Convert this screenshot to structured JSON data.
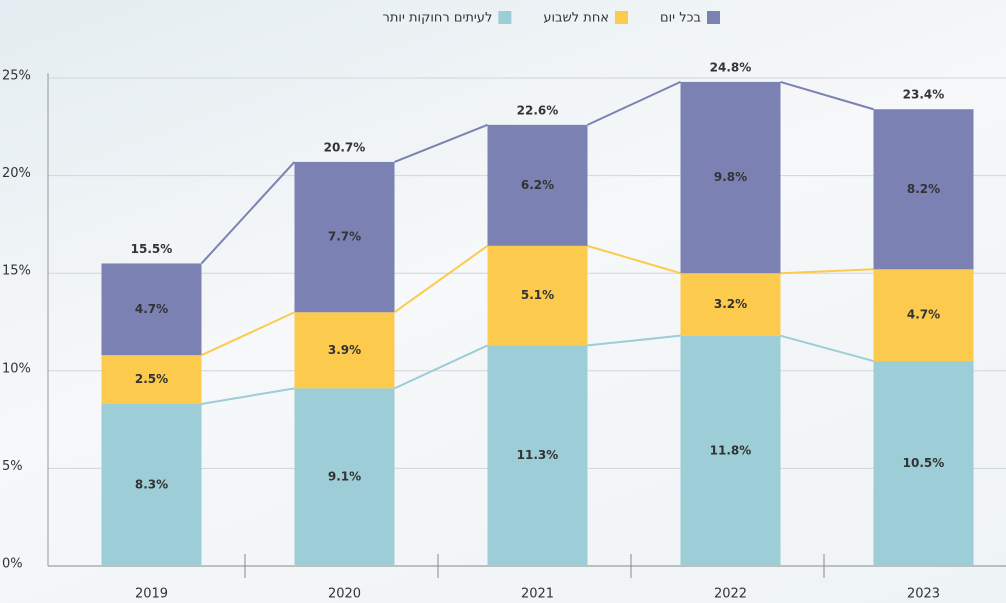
{
  "chart_data": {
    "type": "stacked_bar",
    "categories": [
      "2019",
      "2020",
      "2021",
      "2022",
      "2023"
    ],
    "series": [
      {
        "name": "לעיתים רחוקות יותר",
        "color": "#9dcdd6",
        "values": [
          8.3,
          9.1,
          11.3,
          11.8,
          10.5
        ],
        "value_labels": [
          "8.3%",
          "9.1%",
          "11.3%",
          "11.8%",
          "10.5%"
        ]
      },
      {
        "name": "אחת לשבוע",
        "color": "#fccb4e",
        "values": [
          2.5,
          3.9,
          5.1,
          3.2,
          4.7
        ],
        "value_labels": [
          "2.5%",
          "3.9%",
          "5.1%",
          "3.2%",
          "4.7%"
        ]
      },
      {
        "name": "בכל יום",
        "color": "#7b82b3",
        "values": [
          4.7,
          7.7,
          6.2,
          9.8,
          8.2
        ],
        "value_labels": [
          "4.7%",
          "7.7%",
          "6.2%",
          "9.8%",
          "8.2%"
        ]
      }
    ],
    "totals": [
      15.5,
      20.7,
      22.6,
      24.8,
      23.4
    ],
    "total_labels": [
      "15.5%",
      "20.7%",
      "22.6%",
      "24.8%",
      "23.4%"
    ],
    "ylim": [
      0,
      25
    ],
    "yticks": [
      {
        "value": 0,
        "label": "0%"
      },
      {
        "value": 5,
        "label": "5%"
      },
      {
        "value": 10,
        "label": "10%"
      },
      {
        "value": 15,
        "label": "15%"
      },
      {
        "value": 20,
        "label": "20%"
      },
      {
        "value": 25,
        "label": "25%"
      }
    ],
    "grid": true,
    "legend": "top"
  }
}
